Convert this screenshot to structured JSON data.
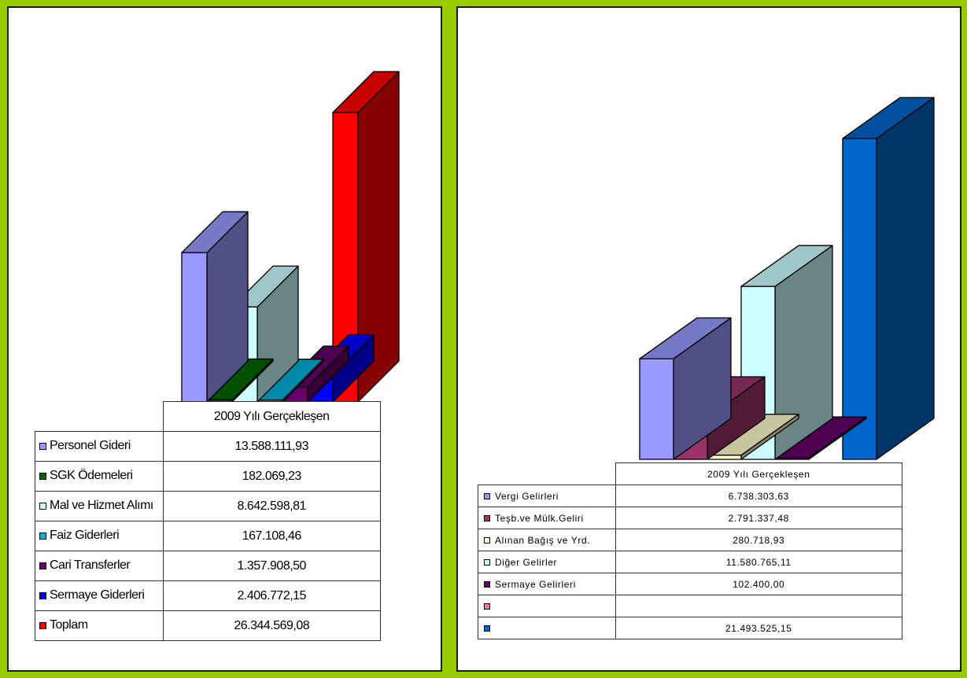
{
  "charts": [
    {
      "column_header": "2009 Yılı Gerçekleşen",
      "chart_data": {
        "type": "bar",
        "categories": [
          "Personel Gideri",
          "SGK Ödemeleri",
          "Mal ve Hizmet Alımı",
          "Faiz Giderleri",
          "Cari Transferler",
          "Sermaye Giderleri",
          "Toplam"
        ],
        "series": [
          {
            "name": "2009 Yılı Gerçekleşen",
            "values": [
              13588111.93,
              182069.23,
              8642598.81,
              167108.46,
              1357908.5,
              2406772.15,
              26344569.08
            ]
          }
        ],
        "display_values": [
          "13.588.111,93",
          "182.069,23",
          "8.642.598,81",
          "167.108,46",
          "1.357.908,50",
          "2.406.772,15",
          "26.344.569,08"
        ],
        "colors": [
          "#9999ff",
          "#006600",
          "#ccffff",
          "#00b0d8",
          "#660066",
          "#0000ff",
          "#ff0000"
        ],
        "legend": "data-table"
      }
    },
    {
      "column_header": "2009 Yılı Gerçekleşen",
      "chart_data": {
        "type": "bar",
        "categories": [
          "Vergi Gelirleri",
          "Teşb.ve Mülk.Geliri",
          "Alınan Bağış ve Yrd.",
          "Diğer Gelirler",
          "Sermaye Gelirleri",
          "",
          ""
        ],
        "series": [
          {
            "name": "2009 Yılı Gerçekleşen",
            "values": [
              6738303.63,
              2791337.48,
              280718.93,
              11580765.11,
              102400.0,
              null,
              21493525.15
            ]
          }
        ],
        "display_values": [
          "6.738.303,63",
          "2.791.337,48",
          "280.718,93",
          "11.580.765,11",
          "102.400,00",
          "",
          "21.493.525,15"
        ],
        "colors": [
          "#9999ff",
          "#993366",
          "#ffffcc",
          "#ccffff",
          "#660066",
          "#ff8080",
          "#0066cc"
        ],
        "legend": "data-table"
      }
    }
  ]
}
